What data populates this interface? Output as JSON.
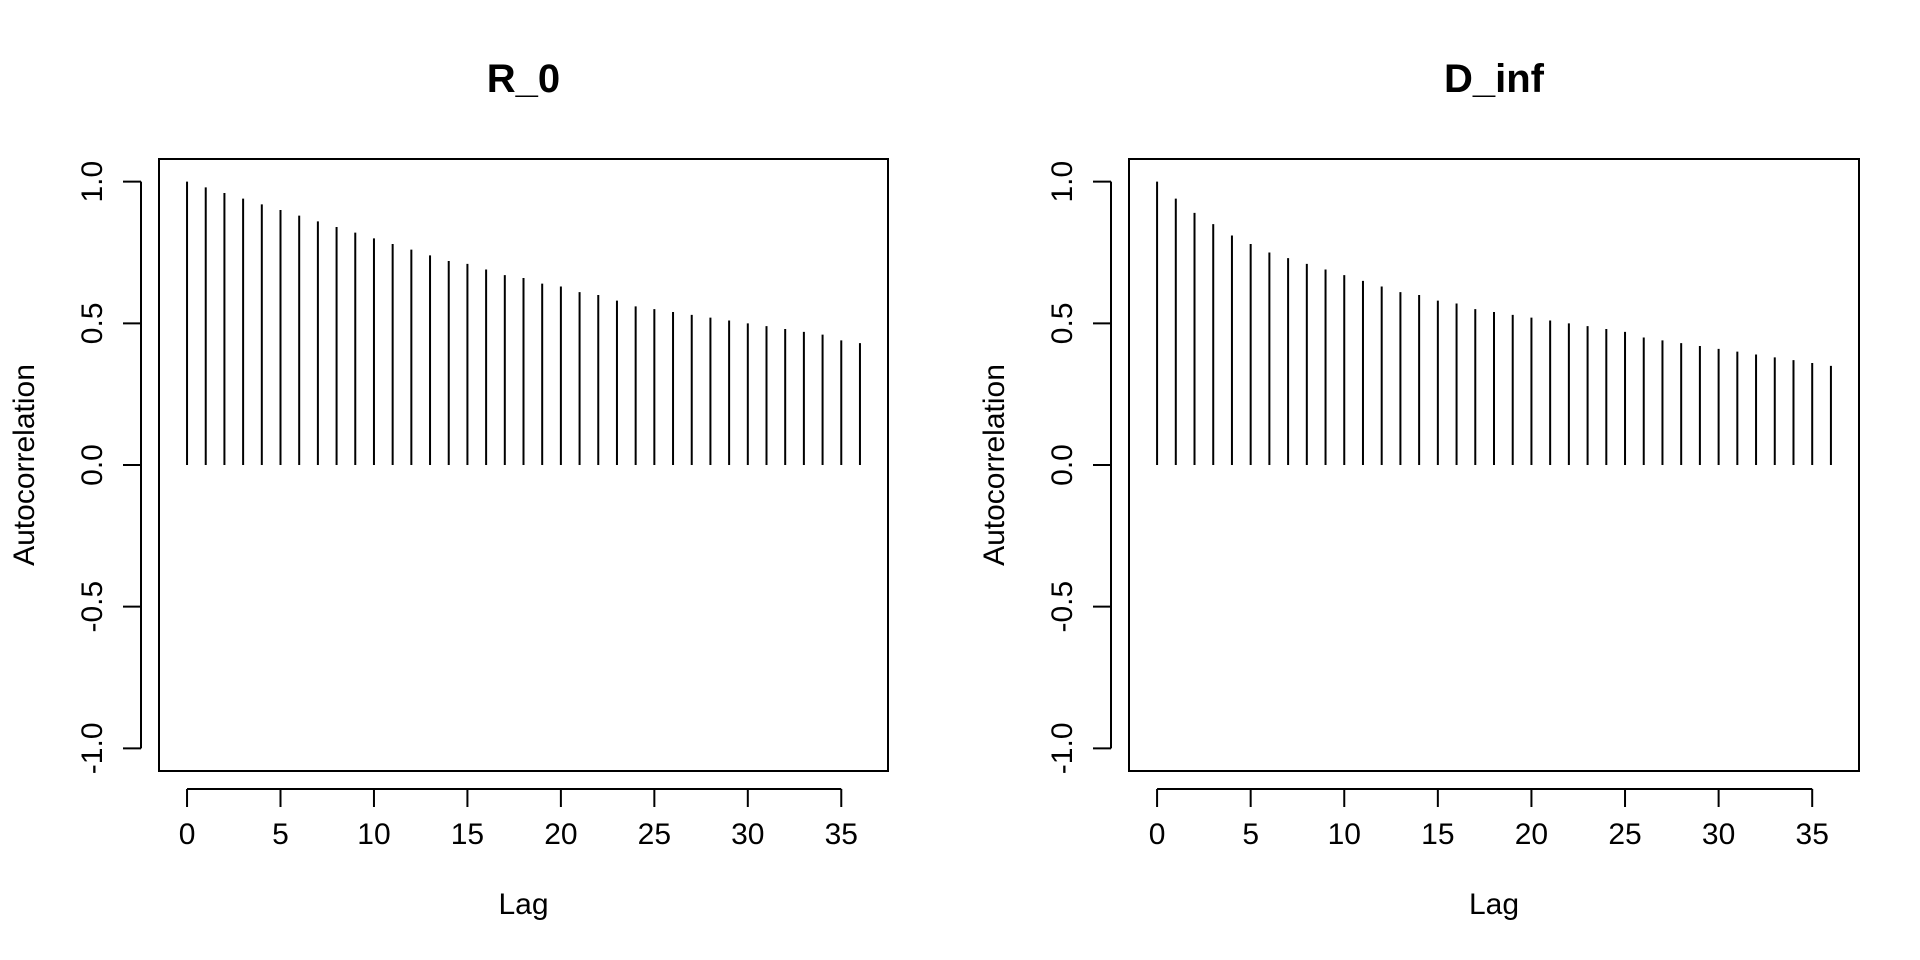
{
  "chart_data": [
    {
      "type": "bar",
      "title": "R_0",
      "xlabel": "Lag",
      "ylabel": "Autocorrelation",
      "xlim": [
        -1.5,
        37.5
      ],
      "ylim": [
        -1.08,
        1.08
      ],
      "x_ticks": [
        0,
        5,
        10,
        15,
        20,
        25,
        30,
        35
      ],
      "x_tick_labels": [
        "0",
        "5",
        "10",
        "15",
        "20",
        "25",
        "30",
        "35"
      ],
      "y_ticks": [
        -1.0,
        -0.5,
        0.0,
        0.5,
        1.0
      ],
      "y_tick_labels": [
        "-1.0",
        "-0.5",
        "0.0",
        "0.5",
        "1.0"
      ],
      "x": [
        0,
        1,
        2,
        3,
        4,
        5,
        6,
        7,
        8,
        9,
        10,
        11,
        12,
        13,
        14,
        15,
        16,
        17,
        18,
        19,
        20,
        21,
        22,
        23,
        24,
        25,
        26,
        27,
        28,
        29,
        30,
        31,
        32,
        33,
        34,
        35,
        36
      ],
      "values": [
        1.0,
        0.98,
        0.96,
        0.94,
        0.92,
        0.9,
        0.88,
        0.86,
        0.84,
        0.82,
        0.8,
        0.78,
        0.76,
        0.74,
        0.72,
        0.71,
        0.69,
        0.67,
        0.66,
        0.64,
        0.63,
        0.61,
        0.6,
        0.58,
        0.56,
        0.55,
        0.54,
        0.53,
        0.52,
        0.51,
        0.5,
        0.49,
        0.48,
        0.47,
        0.46,
        0.44,
        0.43
      ],
      "grid": false,
      "legend": "none"
    },
    {
      "type": "bar",
      "title": "D_inf",
      "xlabel": "Lag",
      "ylabel": "Autocorrelation",
      "xlim": [
        -1.5,
        37.5
      ],
      "ylim": [
        -1.08,
        1.08
      ],
      "x_ticks": [
        0,
        5,
        10,
        15,
        20,
        25,
        30,
        35
      ],
      "x_tick_labels": [
        "0",
        "5",
        "10",
        "15",
        "20",
        "25",
        "30",
        "35"
      ],
      "y_ticks": [
        -1.0,
        -0.5,
        0.0,
        0.5,
        1.0
      ],
      "y_tick_labels": [
        "-1.0",
        "-0.5",
        "0.0",
        "0.5",
        "1.0"
      ],
      "x": [
        0,
        1,
        2,
        3,
        4,
        5,
        6,
        7,
        8,
        9,
        10,
        11,
        12,
        13,
        14,
        15,
        16,
        17,
        18,
        19,
        20,
        21,
        22,
        23,
        24,
        25,
        26,
        27,
        28,
        29,
        30,
        31,
        32,
        33,
        34,
        35,
        36
      ],
      "values": [
        1.0,
        0.94,
        0.89,
        0.85,
        0.81,
        0.78,
        0.75,
        0.73,
        0.71,
        0.69,
        0.67,
        0.65,
        0.63,
        0.61,
        0.6,
        0.58,
        0.57,
        0.55,
        0.54,
        0.53,
        0.52,
        0.51,
        0.5,
        0.49,
        0.48,
        0.47,
        0.45,
        0.44,
        0.43,
        0.42,
        0.41,
        0.4,
        0.39,
        0.38,
        0.37,
        0.36,
        0.35
      ],
      "grid": false,
      "legend": "none"
    }
  ]
}
